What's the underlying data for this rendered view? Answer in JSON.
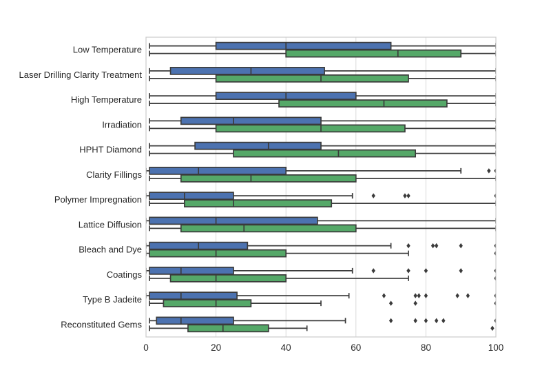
{
  "figure": {
    "background": "#ffffff",
    "plot_background": "#ffffff",
    "grid_color": "#d9d9d9",
    "spine_color": "#cbcbcb",
    "text_color": "#262626"
  },
  "chart_data": {
    "type": "boxplot",
    "orientation": "horizontal",
    "title": "",
    "xlabel": "",
    "ylabel": "",
    "grid": true,
    "legend": "none",
    "xlim": [
      0,
      100
    ],
    "x_ticks": [
      0,
      20,
      40,
      60,
      80,
      100
    ],
    "box_edge_color": "#3b3b3b",
    "outlier_marker": "diamond",
    "categories": [
      "Low Temperature",
      "Laser Drilling Clarity Treatment",
      "High Temperature",
      "Irradiation",
      "HPHT Diamond",
      "Clarity Fillings",
      "Polymer Impregnation",
      "Lattice Diffusion",
      "Bleach and Dye",
      "Coatings",
      "Type B Jadeite",
      "Reconstituted Gems"
    ],
    "series": [
      {
        "name": "blue",
        "color": "#4c72b0",
        "boxes": [
          {
            "whislo": 1,
            "q1": 20,
            "med": 40,
            "q3": 70,
            "whishi": 100,
            "outliers": []
          },
          {
            "whislo": 1,
            "q1": 7,
            "med": 30,
            "q3": 51,
            "whishi": 100,
            "outliers": []
          },
          {
            "whislo": 1,
            "q1": 20,
            "med": 40,
            "q3": 60,
            "whishi": 100,
            "outliers": []
          },
          {
            "whislo": 1,
            "q1": 10,
            "med": 25,
            "q3": 50,
            "whishi": 100,
            "outliers": []
          },
          {
            "whislo": 1,
            "q1": 14,
            "med": 35,
            "q3": 50,
            "whishi": 100,
            "outliers": []
          },
          {
            "whislo": 0,
            "q1": 1,
            "med": 15,
            "q3": 40,
            "whishi": 90,
            "outliers": [
              98,
              100
            ]
          },
          {
            "whislo": 0,
            "q1": 1,
            "med": 11,
            "q3": 25,
            "whishi": 59,
            "outliers": [
              65,
              74,
              75,
              100
            ]
          },
          {
            "whislo": 0,
            "q1": 1,
            "med": 20,
            "q3": 49,
            "whishi": 100,
            "outliers": []
          },
          {
            "whislo": 0,
            "q1": 1,
            "med": 15,
            "q3": 29,
            "whishi": 70,
            "outliers": [
              75,
              82,
              83,
              90,
              100
            ]
          },
          {
            "whislo": 0,
            "q1": 1,
            "med": 10,
            "q3": 25,
            "whishi": 59,
            "outliers": [
              65,
              75,
              80,
              90,
              100
            ]
          },
          {
            "whislo": 0,
            "q1": 1,
            "med": 10,
            "q3": 26,
            "whishi": 58,
            "outliers": [
              68,
              77,
              78,
              80,
              89,
              92,
              100
            ]
          },
          {
            "whislo": 1,
            "q1": 3,
            "med": 10,
            "q3": 25,
            "whishi": 57,
            "outliers": [
              70,
              77,
              80,
              83,
              85,
              100
            ]
          }
        ]
      },
      {
        "name": "green",
        "color": "#55a868",
        "boxes": [
          {
            "whislo": 1,
            "q1": 40,
            "med": 72,
            "q3": 90,
            "whishi": 100,
            "outliers": []
          },
          {
            "whislo": 1,
            "q1": 20,
            "med": 50,
            "q3": 75,
            "whishi": 100,
            "outliers": []
          },
          {
            "whislo": 1,
            "q1": 38,
            "med": 68,
            "q3": 86,
            "whishi": 100,
            "outliers": []
          },
          {
            "whislo": 1,
            "q1": 20,
            "med": 50,
            "q3": 74,
            "whishi": 100,
            "outliers": []
          },
          {
            "whislo": 1,
            "q1": 25,
            "med": 55,
            "q3": 77,
            "whishi": 100,
            "outliers": []
          },
          {
            "whislo": 1,
            "q1": 10,
            "med": 30,
            "q3": 60,
            "whishi": 100,
            "outliers": []
          },
          {
            "whislo": 1,
            "q1": 11,
            "med": 25,
            "q3": 53,
            "whishi": 100,
            "outliers": []
          },
          {
            "whislo": 1,
            "q1": 10,
            "med": 28,
            "q3": 60,
            "whishi": 100,
            "outliers": []
          },
          {
            "whislo": 0,
            "q1": 1,
            "med": 20,
            "q3": 40,
            "whishi": 75,
            "outliers": [
              100
            ]
          },
          {
            "whislo": 1,
            "q1": 7,
            "med": 20,
            "q3": 40,
            "whishi": 75,
            "outliers": [
              100
            ]
          },
          {
            "whislo": 1,
            "q1": 5,
            "med": 20,
            "q3": 30,
            "whishi": 50,
            "outliers": [
              70,
              77,
              100
            ]
          },
          {
            "whislo": 1,
            "q1": 12,
            "med": 22,
            "q3": 35,
            "whishi": 46,
            "outliers": [
              99
            ]
          }
        ]
      }
    ]
  }
}
